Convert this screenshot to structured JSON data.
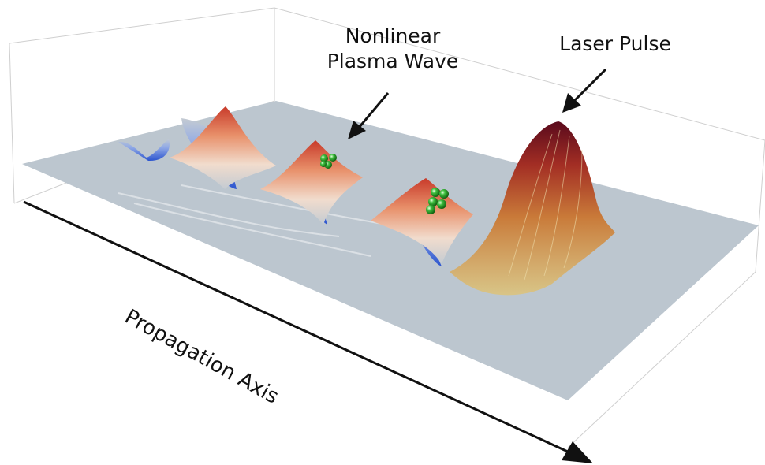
{
  "figure": {
    "labels": {
      "plasma_wave_line1": "Nonlinear",
      "plasma_wave_line2": "Plasma Wave",
      "laser_pulse": "Laser Pulse",
      "propagation_axis": "Propagation Axis"
    },
    "colors": {
      "background": "#ffffff",
      "plane": "#bcc6cf",
      "wave_crest": "#d8653f",
      "wave_trough": "#3a63d6",
      "laser_peak": "#6e0d22",
      "laser_base": "#cdb063",
      "electron_bunch": "#1d9a1d",
      "arrows": "#111111",
      "box_lines": "#cccccc"
    },
    "icons": [
      "electron-bunch-icon",
      "arrow-icon"
    ]
  }
}
